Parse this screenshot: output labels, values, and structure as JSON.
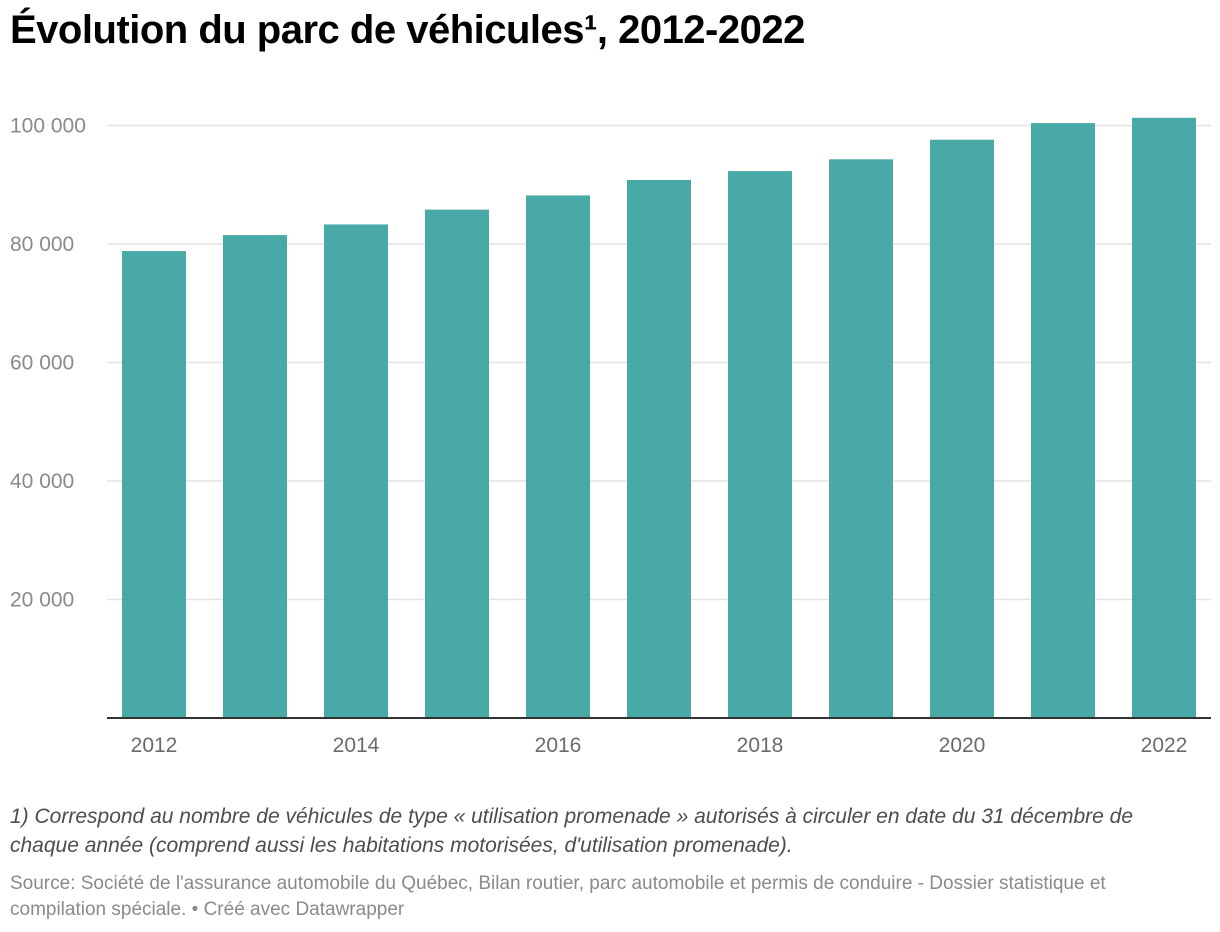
{
  "title": "Évolution du parc de véhicules¹, 2012-2022",
  "notes": "1) Correspond au nombre de véhicules de type « utilisation promenade » autorisés à circuler en date du 31 décembre de chaque année (comprend aussi les habitations motorisées, d'utilisation promenade).",
  "source": "Source: Société de l'assurance automobile du Québec, Bilan routier, parc automobile et permis de conduire - Dossier statistique et compilation spéciale. • Créé avec Datawrapper",
  "colors": {
    "bar": "#49a9a6",
    "grid": "#e3e3e3",
    "baseline": "#333333"
  },
  "chart_data": {
    "type": "bar",
    "categories": [
      "2012",
      "2013",
      "2014",
      "2015",
      "2016",
      "2017",
      "2018",
      "2019",
      "2020",
      "2021",
      "2022"
    ],
    "values": [
      78800,
      81500,
      83300,
      85800,
      88200,
      90800,
      92300,
      94300,
      97600,
      100400,
      101300
    ],
    "x_tick_labels": [
      "2012",
      "2014",
      "2016",
      "2018",
      "2020",
      "2022"
    ],
    "y_ticks": [
      20000,
      40000,
      60000,
      80000,
      100000
    ],
    "y_tick_labels": [
      "20 000",
      "40 000",
      "60 000",
      "80 000",
      "100 000"
    ],
    "ylim": [
      0,
      100000
    ],
    "grid": true,
    "xlabel": "",
    "ylabel": ""
  }
}
